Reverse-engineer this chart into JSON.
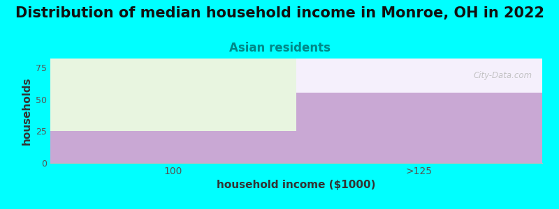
{
  "title": "Distribution of median household income in Monroe, OH in 2022",
  "subtitle": "Asian residents",
  "xlabel": "household income ($1000)",
  "ylabel": "households",
  "background_color": "#00ffff",
  "plot_bg_color": "#ffffff",
  "categories": [
    "100",
    ">125"
  ],
  "values": [
    25,
    55
  ],
  "bar_color_purple": "#c9a8d4",
  "bar_color_green": "#e8f5e0",
  "bar_top_right_color": "#f5f0fc",
  "yticks": [
    0,
    25,
    50,
    75
  ],
  "ylim": [
    0,
    82
  ],
  "title_fontsize": 15,
  "subtitle_fontsize": 12,
  "subtitle_color": "#008888",
  "axis_label_fontsize": 11,
  "tick_color": "#555555",
  "watermark": "City-Data.com",
  "watermark_color": "#bbbbbb",
  "grid_color": "#e0e0e0"
}
